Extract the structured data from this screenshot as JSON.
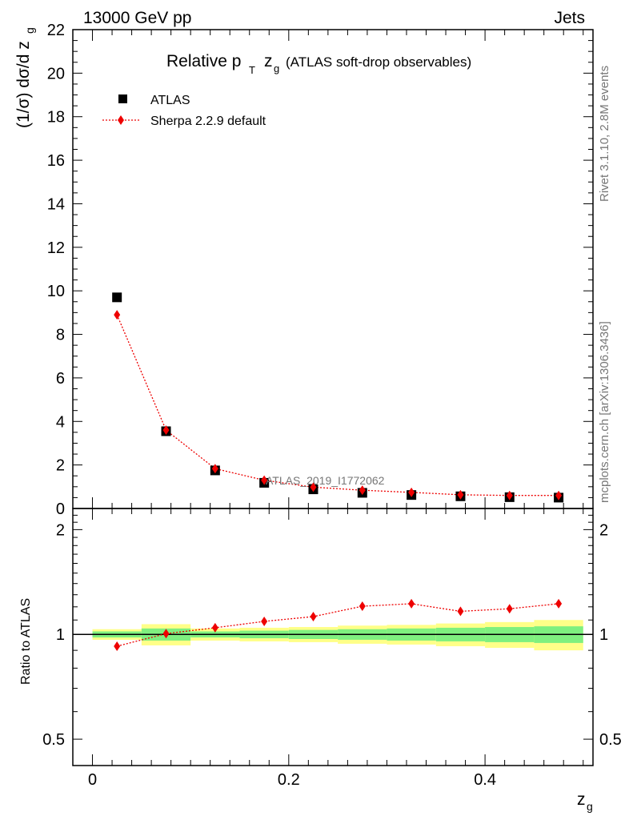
{
  "header": {
    "left": "13000 GeV pp",
    "right": "Jets"
  },
  "title": {
    "main": "Relative p",
    "sub_t": "T",
    "z": "z",
    "sub_g": "g",
    "note": "(ATLAS soft-drop observables)"
  },
  "side": {
    "rivet": "Rivet 3.1.10,  2.8M events",
    "mcplots": "mcplots.cern.ch [arXiv:1306.3436]"
  },
  "watermark": "ATLAS_2019_I1772062",
  "colors": {
    "data": "#000000",
    "mc": "#ee0000",
    "band_inner": "#7ff07f",
    "band_outer": "#ffff88"
  },
  "chart_data": [
    {
      "type": "scatter",
      "panel": "main",
      "title": "Relative pT zg (ATLAS soft-drop observables)",
      "ylabel": "(1/σ) dσ/d z_g",
      "xlabel": "",
      "xlim": [
        -0.02,
        0.51
      ],
      "ylim": [
        0,
        22
      ],
      "yticks": [
        0,
        2,
        4,
        6,
        8,
        10,
        12,
        14,
        16,
        18,
        20,
        22
      ],
      "legend": {
        "position": "top-left",
        "entries": [
          "ATLAS",
          "Sherpa 2.2.9 default"
        ]
      },
      "x": [
        0.025,
        0.075,
        0.125,
        0.175,
        0.225,
        0.275,
        0.325,
        0.375,
        0.425,
        0.475
      ],
      "series": [
        {
          "name": "ATLAS",
          "marker": "square",
          "values": [
            9.7,
            3.55,
            1.75,
            1.18,
            0.88,
            0.72,
            0.62,
            0.56,
            0.52,
            0.5
          ]
        },
        {
          "name": "Sherpa 2.2.9 default",
          "marker": "diamond",
          "line": "dotted",
          "values": [
            8.9,
            3.6,
            1.83,
            1.3,
            0.98,
            0.84,
            0.74,
            0.63,
            0.6,
            0.6
          ]
        }
      ]
    },
    {
      "type": "line",
      "panel": "ratio",
      "ylabel": "Ratio to ATLAS",
      "xlabel": "z_g",
      "xlim": [
        -0.02,
        0.51
      ],
      "ylim": [
        0.42,
        2.3
      ],
      "scale": "log",
      "yticks": [
        0.5,
        1,
        2
      ],
      "xticks": [
        0,
        0.2,
        0.4
      ],
      "x": [
        0.025,
        0.075,
        0.125,
        0.175,
        0.225,
        0.275,
        0.325,
        0.375,
        0.425,
        0.475
      ],
      "series": [
        {
          "name": "Sherpa 2.2.9 default",
          "values": [
            0.925,
            1.005,
            1.045,
            1.09,
            1.125,
            1.205,
            1.225,
            1.165,
            1.185,
            1.225
          ]
        }
      ],
      "band": {
        "edges": [
          0,
          0.05,
          0.1,
          0.15,
          0.2,
          0.25,
          0.3,
          0.35,
          0.4,
          0.45,
          0.5
        ],
        "inner": [
          0.02,
          0.04,
          0.02,
          0.025,
          0.03,
          0.035,
          0.04,
          0.045,
          0.05,
          0.055
        ],
        "outer": [
          0.035,
          0.07,
          0.04,
          0.045,
          0.05,
          0.06,
          0.065,
          0.075,
          0.085,
          0.1
        ]
      }
    }
  ]
}
